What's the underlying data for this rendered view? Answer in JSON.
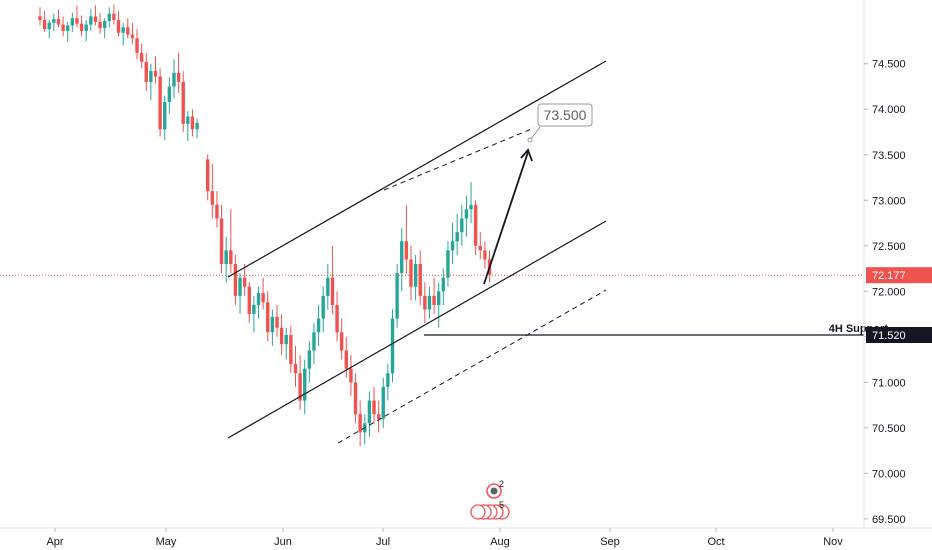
{
  "chart_data": {
    "type": "candlestick",
    "x_ticks": [
      "Apr",
      "May",
      "Jun",
      "Jul",
      "Aug",
      "Sep",
      "Oct",
      "Nov"
    ],
    "y_ticks": [
      "69.500",
      "70.000",
      "70.500",
      "71.000",
      "71.500",
      "72.000",
      "72.500",
      "73.000",
      "73.500",
      "74.000",
      "74.500"
    ],
    "ylim": [
      69.4,
      75.2
    ],
    "current_price": "72.177",
    "current_price_value": 72.177,
    "support": {
      "label": "4H Support",
      "price_label": "71.520",
      "value": 71.52
    },
    "target": {
      "label": "73.500",
      "value": 73.5
    },
    "badges": [
      "2",
      "5"
    ],
    "colors": {
      "up": "#26a69a",
      "down": "#ef5350",
      "axis_text": "#131722",
      "price_line": "#ef5350",
      "support_bg": "#131722"
    },
    "candles": [
      [
        75.02,
        75.12,
        74.92,
        74.98
      ],
      [
        74.98,
        75.08,
        74.85,
        74.88
      ],
      [
        74.88,
        74.98,
        74.78,
        74.95
      ],
      [
        74.95,
        75.05,
        74.86,
        74.99
      ],
      [
        74.99,
        75.1,
        74.9,
        74.93
      ],
      [
        74.93,
        75.02,
        74.8,
        74.86
      ],
      [
        74.86,
        74.96,
        74.74,
        74.92
      ],
      [
        74.92,
        75.06,
        74.85,
        75.0
      ],
      [
        75.0,
        75.14,
        74.9,
        74.94
      ],
      [
        74.94,
        75.03,
        74.8,
        74.86
      ],
      [
        74.86,
        74.98,
        74.75,
        74.93
      ],
      [
        74.93,
        75.1,
        74.86,
        75.02
      ],
      [
        75.02,
        75.14,
        74.92,
        74.96
      ],
      [
        74.96,
        75.06,
        74.83,
        74.89
      ],
      [
        74.89,
        75.0,
        74.78,
        74.97
      ],
      [
        74.97,
        75.12,
        74.9,
        75.05
      ],
      [
        75.05,
        75.15,
        74.93,
        74.98
      ],
      [
        74.98,
        75.08,
        74.8,
        74.84
      ],
      [
        74.84,
        74.95,
        74.7,
        74.9
      ],
      [
        74.9,
        75.0,
        74.78,
        74.82
      ],
      [
        74.82,
        74.95,
        74.72,
        74.78
      ],
      [
        74.78,
        74.88,
        74.55,
        74.62
      ],
      [
        74.62,
        74.72,
        74.45,
        74.52
      ],
      [
        74.52,
        74.62,
        74.2,
        74.3
      ],
      [
        74.3,
        74.5,
        74.1,
        74.42
      ],
      [
        74.42,
        74.58,
        74.28,
        74.36
      ],
      [
        74.36,
        74.45,
        73.7,
        73.78
      ],
      [
        73.78,
        74.15,
        73.66,
        74.08
      ],
      [
        74.08,
        74.35,
        73.95,
        74.25
      ],
      [
        74.25,
        74.55,
        74.12,
        74.4
      ],
      [
        74.4,
        74.62,
        74.18,
        74.3
      ],
      [
        74.3,
        74.42,
        73.75,
        73.84
      ],
      [
        73.84,
        73.98,
        73.65,
        73.92
      ],
      [
        73.92,
        74.0,
        73.7,
        73.78
      ],
      [
        73.78,
        73.9,
        73.68,
        73.85
      ],
      [
        73.45,
        73.5,
        73.0,
        73.1
      ],
      [
        73.1,
        73.4,
        72.8,
        72.95
      ],
      [
        72.95,
        73.1,
        72.7,
        72.8
      ],
      [
        72.8,
        72.95,
        72.2,
        72.3
      ],
      [
        72.3,
        72.6,
        72.1,
        72.45
      ],
      [
        72.45,
        72.9,
        72.2,
        72.3
      ],
      [
        72.3,
        72.4,
        71.85,
        71.95
      ],
      [
        71.95,
        72.2,
        71.75,
        72.15
      ],
      [
        72.15,
        72.3,
        71.95,
        72.05
      ],
      [
        72.05,
        72.1,
        71.65,
        71.75
      ],
      [
        71.75,
        71.95,
        71.55,
        71.85
      ],
      [
        71.85,
        72.05,
        71.7,
        71.98
      ],
      [
        71.98,
        72.15,
        71.8,
        71.88
      ],
      [
        71.88,
        72.0,
        71.45,
        71.55
      ],
      [
        71.55,
        71.8,
        71.4,
        71.72
      ],
      [
        71.72,
        71.85,
        71.5,
        71.6
      ],
      [
        71.6,
        71.75,
        71.3,
        71.42
      ],
      [
        71.42,
        71.6,
        71.25,
        71.52
      ],
      [
        71.52,
        71.62,
        71.1,
        71.2
      ],
      [
        71.2,
        71.4,
        70.95,
        71.1
      ],
      [
        71.1,
        71.3,
        70.7,
        70.8
      ],
      [
        70.8,
        71.25,
        70.65,
        71.15
      ],
      [
        71.15,
        71.45,
        71.0,
        71.35
      ],
      [
        71.35,
        71.65,
        71.2,
        71.55
      ],
      [
        71.55,
        71.85,
        71.4,
        71.7
      ],
      [
        71.7,
        72.05,
        71.55,
        71.95
      ],
      [
        71.95,
        72.3,
        71.8,
        72.15
      ],
      [
        72.15,
        72.5,
        71.75,
        71.85
      ],
      [
        71.85,
        72.0,
        71.45,
        71.55
      ],
      [
        71.55,
        71.7,
        71.25,
        71.35
      ],
      [
        71.35,
        71.5,
        71.05,
        71.15
      ],
      [
        71.15,
        71.3,
        70.85,
        71.0
      ],
      [
        71.0,
        71.1,
        70.55,
        70.65
      ],
      [
        70.65,
        70.8,
        70.3,
        70.45
      ],
      [
        70.45,
        70.65,
        70.32,
        70.55
      ],
      [
        70.55,
        70.9,
        70.4,
        70.8
      ],
      [
        70.8,
        70.95,
        70.55,
        70.65
      ],
      [
        70.65,
        70.8,
        70.45,
        70.6
      ],
      [
        70.6,
        71.05,
        70.5,
        70.95
      ],
      [
        70.95,
        71.2,
        70.8,
        71.1
      ],
      [
        71.1,
        71.8,
        71.0,
        71.7
      ],
      [
        71.7,
        72.3,
        71.6,
        72.2
      ],
      [
        72.2,
        72.7,
        72.0,
        72.55
      ],
      [
        72.55,
        72.95,
        72.2,
        72.35
      ],
      [
        72.35,
        72.5,
        71.9,
        72.05
      ],
      [
        72.05,
        72.4,
        71.9,
        72.3
      ],
      [
        72.3,
        72.45,
        71.85,
        71.95
      ],
      [
        71.95,
        72.1,
        71.65,
        71.8
      ],
      [
        71.8,
        72.05,
        71.7,
        71.95
      ],
      [
        71.95,
        72.15,
        71.75,
        71.85
      ],
      [
        71.85,
        72.1,
        71.6,
        72.0
      ],
      [
        72.0,
        72.25,
        71.85,
        72.15
      ],
      [
        72.15,
        72.55,
        72.05,
        72.45
      ],
      [
        72.45,
        72.75,
        72.3,
        72.55
      ],
      [
        72.55,
        72.85,
        72.4,
        72.65
      ],
      [
        72.65,
        72.95,
        72.5,
        72.8
      ],
      [
        72.8,
        73.05,
        72.6,
        72.9
      ],
      [
        72.9,
        73.2,
        72.75,
        72.95
      ],
      [
        72.95,
        73.0,
        72.4,
        72.5
      ],
      [
        72.5,
        72.65,
        72.35,
        72.45
      ],
      [
        72.45,
        72.55,
        72.25,
        72.35
      ],
      [
        72.35,
        72.45,
        72.1,
        72.18
      ]
    ]
  }
}
